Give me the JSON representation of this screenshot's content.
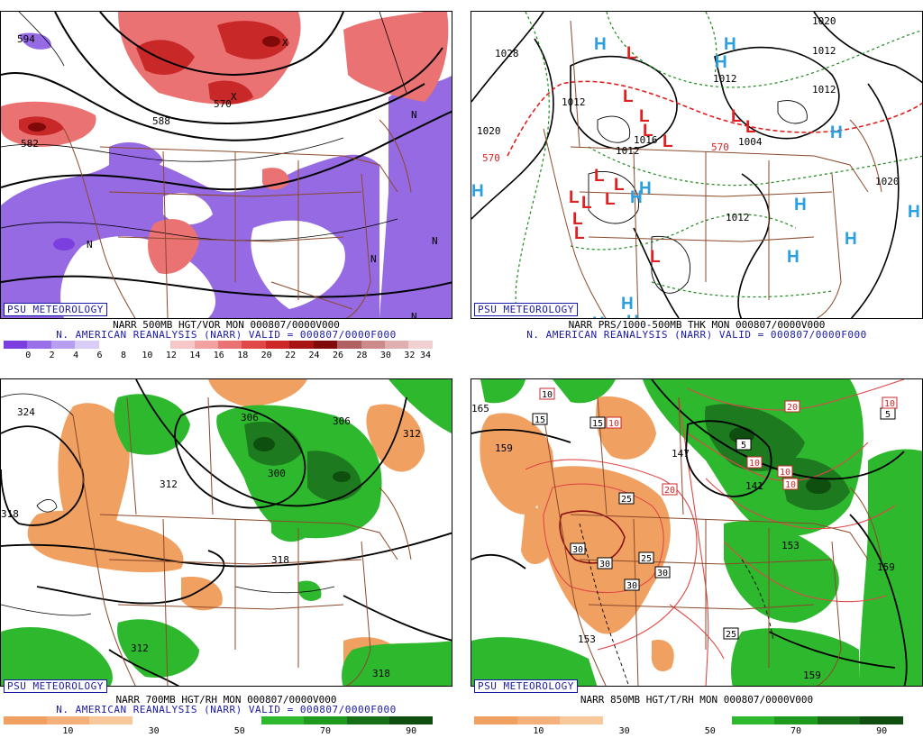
{
  "panels": [
    {
      "id": "tl",
      "badge": "PSU METEOROLOGY",
      "caption1": "NARR 500MB HGT/VOR MON 000807/0000V000",
      "caption2": "N. AMERICAN REANALYSIS (NARR) VALID = 000807/0000F000",
      "colorbar": {
        "colors": [
          "#7b3fe0",
          "#9a70e8",
          "#b89ef0",
          "#d9ccf6",
          "#ffffff",
          "#ffffff",
          "#ffffff",
          "#f6c7c7",
          "#f2a0a0",
          "#ea7272",
          "#e04848",
          "#cc2828",
          "#a81414",
          "#800a0a",
          "#b06060",
          "#cc8a8a",
          "#e0b0b0",
          "#f0d0d0"
        ],
        "labels": [
          "0",
          "2",
          "4",
          "6",
          "8",
          "10",
          "12",
          "14",
          "16",
          "18",
          "20",
          "22",
          "24",
          "26",
          "28",
          "30",
          "32",
          "34"
        ]
      },
      "map_labels": [
        "594",
        "582",
        "570",
        "588",
        "N",
        "N",
        "N",
        "N",
        "N",
        "X",
        "X"
      ]
    },
    {
      "id": "tr",
      "badge": "PSU METEOROLOGY",
      "caption1": "NARR PRS/1000-500MB THK MON 000807/0000V000",
      "caption2": "N. AMERICAN REANALYSIS (NARR) VALID = 000807/0000F000",
      "map_labels": [
        "1028",
        "1020",
        "1012",
        "1012",
        "1012",
        "1020",
        "1012",
        "570",
        "570",
        "1012",
        "1012",
        "1016",
        "1020",
        "1004"
      ],
      "symbols": {
        "high": "H",
        "low": "L"
      }
    },
    {
      "id": "bl",
      "badge": "PSU METEOROLOGY",
      "caption1": "NARR 700MB HGT/RH MON 000807/0000V000",
      "caption2": "N. AMERICAN REANALYSIS (NARR) VALID = 000807/0000F000",
      "colorbar": {
        "colors": [
          "#f0a060",
          "#f4b07a",
          "#f8c89a",
          "#ffffff",
          "#ffffff",
          "#ffffff",
          "#2eb82e",
          "#1e9a1e",
          "#166e16",
          "#0e4e0e"
        ],
        "labels": [
          "10",
          "30",
          "50",
          "70",
          "90"
        ]
      },
      "map_labels": [
        "324",
        "318",
        "312",
        "306",
        "306",
        "300",
        "312",
        "318",
        "312",
        "318"
      ]
    },
    {
      "id": "br",
      "badge": "PSU METEOROLOGY",
      "caption1": "NARR 850MB HGT/T/RH MON 000807/0000V000",
      "colorbar": {
        "colors": [
          "#f0a060",
          "#f4b07a",
          "#f8c89a",
          "#ffffff",
          "#ffffff",
          "#ffffff",
          "#2eb82e",
          "#1e9a1e",
          "#166e16",
          "#0e4e0e"
        ],
        "labels": [
          "10",
          "30",
          "50",
          "70",
          "90"
        ]
      },
      "map_labels": [
        "165",
        "159",
        "147",
        "141",
        "159",
        "153",
        "153",
        "159"
      ],
      "temp_boxes": [
        "10",
        "15",
        "10",
        "25",
        "20",
        "5",
        "10",
        "10",
        "10",
        "30",
        "30",
        "25",
        "30",
        "30",
        "25",
        "20",
        "5",
        "10",
        "15"
      ]
    }
  ]
}
